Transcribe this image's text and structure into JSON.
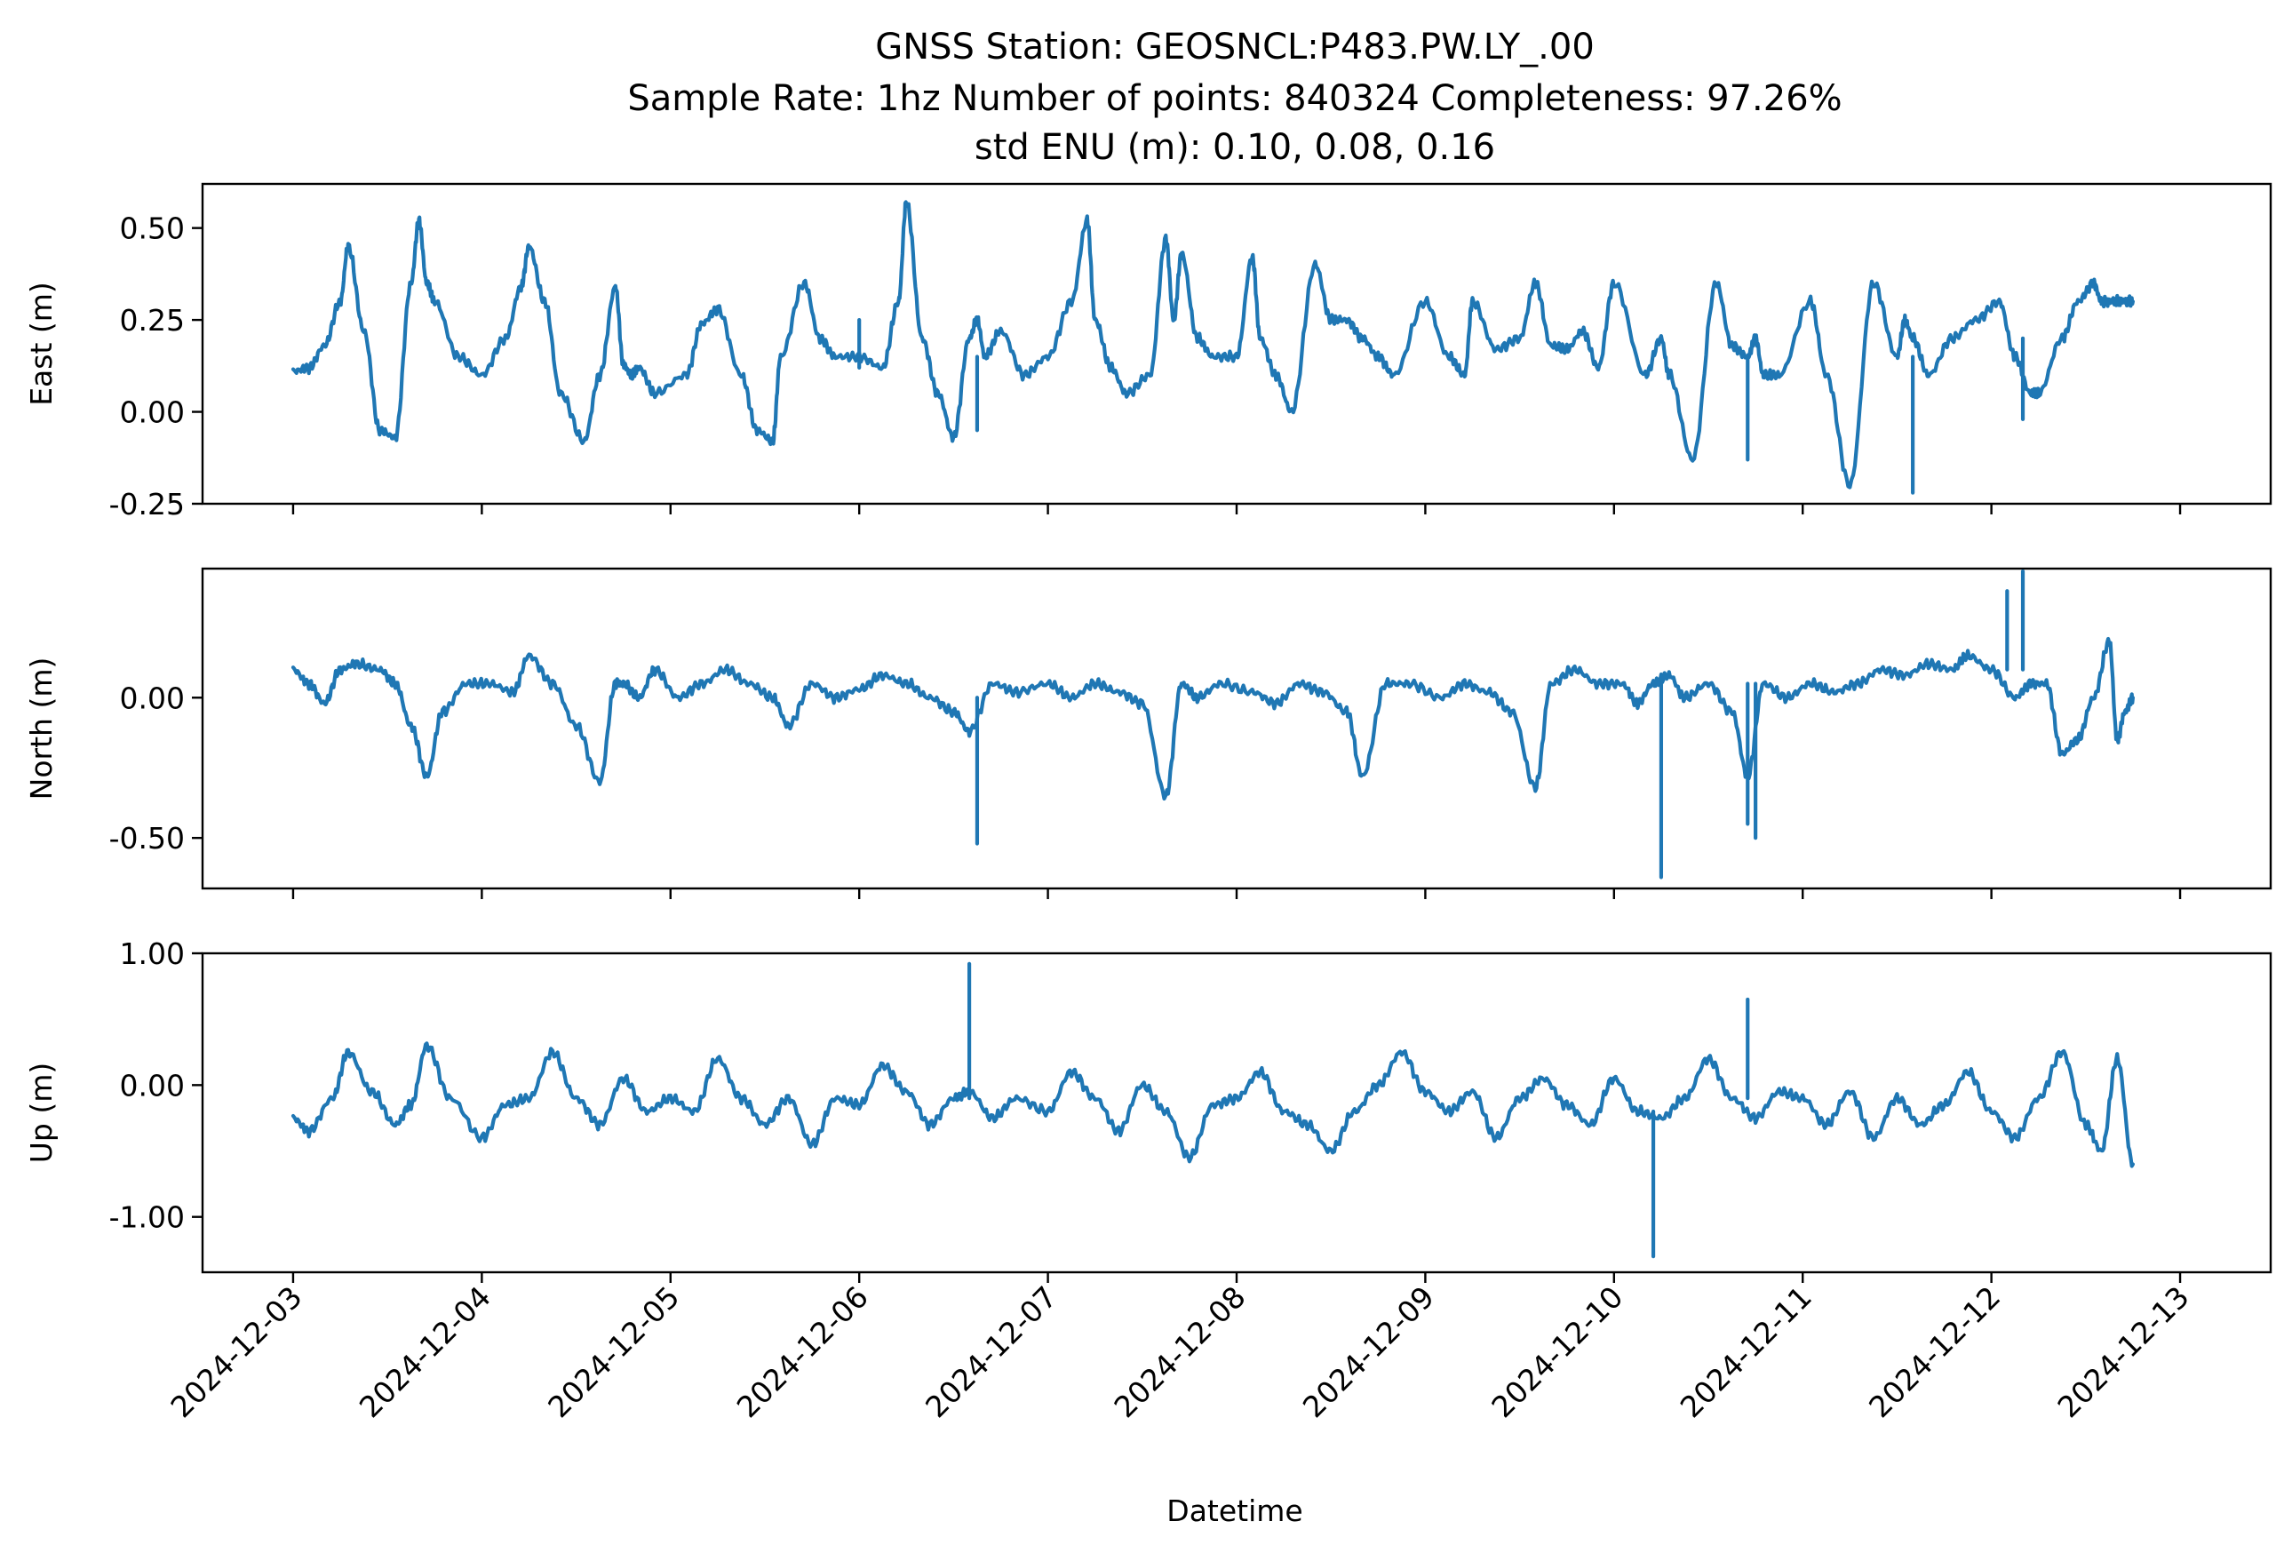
{
  "title": {
    "line1": "GNSS Station: GEOSNCL:P483.PW.LY_.00",
    "line2": "Sample Rate: 1hz   Number of points: 840324    Completeness:  97.26%",
    "line3": "std ENU (m):  0.10, 0.08, 0.16"
  },
  "chart_data": [
    {
      "type": "line",
      "ylabel": "East (m)",
      "xlabel": "",
      "ylim": [
        -0.25,
        0.62
      ],
      "yticks": [
        -0.25,
        0.0,
        0.25,
        0.5
      ],
      "ytick_labels": [
        "-0.25",
        "0.00",
        "0.25",
        "0.50"
      ],
      "series_color": "#1f77b4",
      "series": [
        {
          "x": [
            "2024-12-03 00:00",
            "2024-12-03 02:00",
            "2024-12-03 04:00",
            "2024-12-03 06:00",
            "2024-12-03 07:00",
            "2024-12-03 09:00",
            "2024-12-03 11:00",
            "2024-12-03 13:00",
            "2024-12-03 15:00",
            "2024-12-03 16:00",
            "2024-12-03 17:00",
            "2024-12-03 18:00",
            "2024-12-03 21:00",
            "2024-12-04 00:00",
            "2024-12-04 03:00",
            "2024-12-04 05:00",
            "2024-12-04 06:00",
            "2024-12-04 08:00",
            "2024-12-04 10:00",
            "2024-12-04 13:00",
            "2024-12-04 15:00",
            "2024-12-04 17:00",
            "2024-12-04 18:00",
            "2024-12-04 19:00",
            "2024-12-04 20:00",
            "2024-12-04 22:00",
            "2024-12-05 02:00",
            "2024-12-05 04:00",
            "2024-12-05 06:00",
            "2024-12-05 09:00",
            "2024-12-05 11:00",
            "2024-12-05 13:00",
            "2024-12-05 14:00",
            "2024-12-05 17:00",
            "2024-12-05 19:00",
            "2024-12-05 21:00",
            "2024-12-06 00:00",
            "2024-12-06 03:00",
            "2024-12-06 05:00",
            "2024-12-06 06:00",
            "2024-12-06 08:00",
            "2024-12-06 10:00",
            "2024-12-06 12:00",
            "2024-12-06 14:00",
            "2024-12-06 15:00",
            "2024-12-06 16:00",
            "2024-12-06 18:00",
            "2024-12-06 21:00",
            "2024-12-07 00:00",
            "2024-12-07 03:00",
            "2024-12-07 05:00",
            "2024-12-07 06:00",
            "2024-12-07 08:00",
            "2024-12-07 10:00",
            "2024-12-07 13:00",
            "2024-12-07 15:00",
            "2024-12-07 16:00",
            "2024-12-07 17:00",
            "2024-12-07 19:00",
            "2024-12-07 21:00",
            "2024-12-08 00:00",
            "2024-12-08 02:00",
            "2024-12-08 03:00",
            "2024-12-08 05:00",
            "2024-12-08 07:00",
            "2024-12-08 10:00",
            "2024-12-08 12:00",
            "2024-12-08 14:00",
            "2024-12-08 16:00",
            "2024-12-08 18:00",
            "2024-12-08 20:00",
            "2024-12-09 00:00",
            "2024-12-09 03:00",
            "2024-12-09 05:00",
            "2024-12-09 06:00",
            "2024-12-09 09:00",
            "2024-12-09 12:00",
            "2024-12-09 14:00",
            "2024-12-09 16:00",
            "2024-12-09 18:00",
            "2024-12-09 20:00",
            "2024-12-09 22:00",
            "2024-12-10 00:00",
            "2024-12-10 04:00",
            "2024-12-10 06:00",
            "2024-12-10 07:00",
            "2024-12-10 10:00",
            "2024-12-10 13:00",
            "2024-12-10 15:00",
            "2024-12-10 17:00",
            "2024-12-10 18:00",
            "2024-12-10 19:00",
            "2024-12-10 21:00",
            "2024-12-11 01:00",
            "2024-12-11 03:00",
            "2024-12-11 06:00",
            "2024-12-11 09:00",
            "2024-12-11 12:00",
            "2024-12-11 13:00",
            "2024-12-11 14:00",
            "2024-12-11 16:00",
            "2024-12-11 19:00",
            "2024-12-11 22:00",
            "2024-12-12 01:00",
            "2024-12-12 03:00",
            "2024-12-12 05:00",
            "2024-12-12 06:00",
            "2024-12-12 09:00",
            "2024-12-12 11:00",
            "2024-12-12 13:00",
            "2024-12-12 14:00",
            "2024-12-12 15:00",
            "2024-12-12 16:00",
            "2024-12-12 17:00",
            "2024-12-12 18:00"
          ],
          "y": [
            0.11,
            0.12,
            0.18,
            0.3,
            0.45,
            0.22,
            -0.05,
            -0.07,
            0.35,
            0.52,
            0.35,
            0.3,
            0.15,
            0.1,
            0.2,
            0.34,
            0.45,
            0.3,
            0.05,
            -0.08,
            0.1,
            0.34,
            0.13,
            0.1,
            0.12,
            0.05,
            0.1,
            0.24,
            0.28,
            0.1,
            -0.05,
            -0.08,
            0.15,
            0.35,
            0.2,
            0.15,
            0.15,
            0.12,
            0.3,
            0.57,
            0.2,
            0.05,
            -0.07,
            0.2,
            0.25,
            0.15,
            0.22,
            0.1,
            0.15,
            0.3,
            0.52,
            0.25,
            0.12,
            0.05,
            0.1,
            0.47,
            0.25,
            0.43,
            0.2,
            0.15,
            0.15,
            0.42,
            0.2,
            0.1,
            0.0,
            0.4,
            0.25,
            0.25,
            0.2,
            0.15,
            0.1,
            0.3,
            0.15,
            0.1,
            0.3,
            0.17,
            0.2,
            0.35,
            0.18,
            0.17,
            0.22,
            0.12,
            0.35,
            0.1,
            0.2,
            0.1,
            -0.13,
            0.35,
            0.18,
            0.15,
            0.2,
            0.1,
            0.1,
            0.3,
            0.1,
            -0.2,
            0.35,
            0.15,
            0.25,
            0.2,
            0.1,
            0.2,
            0.25,
            0.3,
            0.15,
            0.05,
            0.05,
            0.2,
            0.3,
            0.35,
            0.3,
            0.3,
            0.3,
            0.3,
            0.3
          ],
          "spikes": [
            {
              "x": "2024-12-06 00:00",
              "from": 0.12,
              "to": 0.25
            },
            {
              "x": "2024-12-06 15:00",
              "from": 0.15,
              "to": -0.05
            },
            {
              "x": "2024-12-10 17:00",
              "from": 0.15,
              "to": -0.13
            },
            {
              "x": "2024-12-11 14:00",
              "from": 0.15,
              "to": -0.22
            },
            {
              "x": "2024-12-12 04:00",
              "from": 0.2,
              "to": -0.02
            }
          ]
        }
      ]
    },
    {
      "type": "line",
      "ylabel": "North (m)",
      "xlabel": "",
      "ylim": [
        -0.68,
        0.46
      ],
      "yticks": [
        -0.5,
        0.0
      ],
      "ytick_labels": [
        "-0.50",
        "0.00"
      ],
      "series_color": "#1f77b4",
      "series": [
        {
          "x": [
            "2024-12-03 00:00",
            "2024-12-03 02:00",
            "2024-12-03 04:00",
            "2024-12-03 06:00",
            "2024-12-03 08:00",
            "2024-12-03 11:00",
            "2024-12-03 13:00",
            "2024-12-03 15:00",
            "2024-12-03 17:00",
            "2024-12-03 19:00",
            "2024-12-03 22:00",
            "2024-12-04 01:00",
            "2024-12-04 04:00",
            "2024-12-04 06:00",
            "2024-12-04 09:00",
            "2024-12-04 12:00",
            "2024-12-04 15:00",
            "2024-12-04 17:00",
            "2024-12-04 18:00",
            "2024-12-04 20:00",
            "2024-12-04 22:00",
            "2024-12-05 01:00",
            "2024-12-05 04:00",
            "2024-12-05 07:00",
            "2024-12-05 10:00",
            "2024-12-05 13:00",
            "2024-12-05 15:00",
            "2024-12-05 18:00",
            "2024-12-05 21:00",
            "2024-12-06 00:00",
            "2024-12-06 03:00",
            "2024-12-06 06:00",
            "2024-12-06 09:00",
            "2024-12-06 12:00",
            "2024-12-06 14:00",
            "2024-12-06 17:00",
            "2024-12-06 20:00",
            "2024-12-07 00:00",
            "2024-12-07 03:00",
            "2024-12-07 06:00",
            "2024-12-07 09:00",
            "2024-12-07 12:00",
            "2024-12-07 15:00",
            "2024-12-07 17:00",
            "2024-12-07 19:00",
            "2024-12-07 22:00",
            "2024-12-08 02:00",
            "2024-12-08 05:00",
            "2024-12-08 08:00",
            "2024-12-08 11:00",
            "2024-12-08 14:00",
            "2024-12-08 16:00",
            "2024-12-08 19:00",
            "2024-12-08 22:00",
            "2024-12-09 02:00",
            "2024-12-09 05:00",
            "2024-12-09 08:00",
            "2024-12-09 11:00",
            "2024-12-09 14:00",
            "2024-12-09 16:00",
            "2024-12-09 19:00",
            "2024-12-09 22:00",
            "2024-12-10 01:00",
            "2024-12-10 03:00",
            "2024-12-10 05:00",
            "2024-12-10 07:00",
            "2024-12-10 09:00",
            "2024-12-10 12:00",
            "2024-12-10 15:00",
            "2024-12-10 17:00",
            "2024-12-10 19:00",
            "2024-12-10 22:00",
            "2024-12-11 01:00",
            "2024-12-11 04:00",
            "2024-12-11 07:00",
            "2024-12-11 10:00",
            "2024-12-11 13:00",
            "2024-12-11 16:00",
            "2024-12-11 19:00",
            "2024-12-11 21:00",
            "2024-12-12 00:00",
            "2024-12-12 03:00",
            "2024-12-12 05:00",
            "2024-12-12 07:00",
            "2024-12-12 09:00",
            "2024-12-12 11:00",
            "2024-12-12 13:00",
            "2024-12-12 15:00",
            "2024-12-12 16:00",
            "2024-12-12 17:00",
            "2024-12-12 18:00"
          ],
          "y": [
            0.1,
            0.05,
            -0.02,
            0.1,
            0.12,
            0.1,
            0.05,
            -0.1,
            -0.28,
            -0.05,
            0.05,
            0.05,
            0.02,
            0.15,
            0.05,
            -0.1,
            -0.3,
            0.05,
            0.05,
            0.0,
            0.1,
            0.0,
            0.05,
            0.1,
            0.05,
            0.0,
            -0.1,
            0.05,
            0.0,
            0.03,
            0.08,
            0.05,
            0.0,
            -0.05,
            -0.12,
            0.05,
            0.02,
            0.05,
            0.0,
            0.05,
            0.02,
            -0.02,
            -0.35,
            0.05,
            0.0,
            0.05,
            0.02,
            -0.02,
            0.05,
            0.02,
            -0.05,
            -0.28,
            0.05,
            0.05,
            0.0,
            0.05,
            0.02,
            -0.05,
            -0.32,
            0.05,
            0.1,
            0.05,
            0.05,
            -0.02,
            0.05,
            0.08,
            0.0,
            0.05,
            -0.05,
            -0.28,
            0.05,
            0.0,
            0.05,
            0.02,
            0.05,
            0.1,
            0.08,
            0.12,
            0.1,
            0.15,
            0.1,
            0.0,
            0.05,
            0.05,
            -0.2,
            -0.15,
            0.0,
            0.2,
            -0.15,
            -0.05,
            0.0
          ],
          "spikes": [
            {
              "x": "2024-12-06 15:00",
              "from": 0.0,
              "to": -0.52
            },
            {
              "x": "2024-12-10 06:00",
              "from": 0.05,
              "to": -0.64
            },
            {
              "x": "2024-12-10 18:00",
              "from": 0.05,
              "to": -0.5
            },
            {
              "x": "2024-12-10 17:00",
              "from": 0.05,
              "to": -0.45
            },
            {
              "x": "2024-12-12 04:00",
              "from": 0.1,
              "to": 0.45
            },
            {
              "x": "2024-12-12 02:00",
              "from": 0.1,
              "to": 0.38
            }
          ]
        }
      ]
    },
    {
      "type": "line",
      "ylabel": "Up (m)",
      "xlabel": "Datetime",
      "ylim": [
        -1.42,
        1.0
      ],
      "yticks": [
        -1.0,
        0.0,
        1.0
      ],
      "ytick_labels": [
        "-1.00",
        "0.00",
        "1.00"
      ],
      "xticks": [
        "2024-12-03",
        "2024-12-04",
        "2024-12-05",
        "2024-12-06",
        "2024-12-07",
        "2024-12-08",
        "2024-12-09",
        "2024-12-10",
        "2024-12-11",
        "2024-12-12",
        "2024-12-13"
      ],
      "series_color": "#1f77b4",
      "series": [
        {
          "x": [
            "2024-12-03 00:00",
            "2024-12-03 02:00",
            "2024-12-03 05:00",
            "2024-12-03 07:00",
            "2024-12-03 10:00",
            "2024-12-03 13:00",
            "2024-12-03 15:00",
            "2024-12-03 17:00",
            "2024-12-03 20:00",
            "2024-12-04 00:00",
            "2024-12-04 03:00",
            "2024-12-04 06:00",
            "2024-12-04 09:00",
            "2024-12-04 12:00",
            "2024-12-04 15:00",
            "2024-12-04 18:00",
            "2024-12-04 21:00",
            "2024-12-05 00:00",
            "2024-12-05 03:00",
            "2024-12-05 06:00",
            "2024-12-05 09:00",
            "2024-12-05 12:00",
            "2024-12-05 15:00",
            "2024-12-05 18:00",
            "2024-12-05 21:00",
            "2024-12-06 00:00",
            "2024-12-06 03:00",
            "2024-12-06 06:00",
            "2024-12-06 09:00",
            "2024-12-06 12:00",
            "2024-12-06 14:00",
            "2024-12-06 17:00",
            "2024-12-06 20:00",
            "2024-12-07 00:00",
            "2024-12-07 03:00",
            "2024-12-07 06:00",
            "2024-12-07 09:00",
            "2024-12-07 12:00",
            "2024-12-07 15:00",
            "2024-12-07 18:00",
            "2024-12-07 21:00",
            "2024-12-08 00:00",
            "2024-12-08 03:00",
            "2024-12-08 06:00",
            "2024-12-08 09:00",
            "2024-12-08 12:00",
            "2024-12-08 15:00",
            "2024-12-08 18:00",
            "2024-12-08 21:00",
            "2024-12-09 00:00",
            "2024-12-09 03:00",
            "2024-12-09 06:00",
            "2024-12-09 09:00",
            "2024-12-09 12:00",
            "2024-12-09 15:00",
            "2024-12-09 18:00",
            "2024-12-09 21:00",
            "2024-12-10 00:00",
            "2024-12-10 03:00",
            "2024-12-10 06:00",
            "2024-12-10 09:00",
            "2024-12-10 12:00",
            "2024-12-10 15:00",
            "2024-12-10 18:00",
            "2024-12-10 21:00",
            "2024-12-11 00:00",
            "2024-12-11 03:00",
            "2024-12-11 06:00",
            "2024-12-11 09:00",
            "2024-12-11 12:00",
            "2024-12-11 15:00",
            "2024-12-11 18:00",
            "2024-12-11 21:00",
            "2024-12-12 00:00",
            "2024-12-12 03:00",
            "2024-12-12 06:00",
            "2024-12-12 09:00",
            "2024-12-12 12:00",
            "2024-12-12 14:00",
            "2024-12-12 16:00",
            "2024-12-12 18:00"
          ],
          "y": [
            -0.25,
            -0.35,
            -0.1,
            0.25,
            -0.05,
            -0.3,
            -0.15,
            0.3,
            -0.1,
            -0.4,
            -0.15,
            -0.1,
            0.25,
            -0.1,
            -0.3,
            0.05,
            -0.2,
            -0.1,
            -0.2,
            0.2,
            -0.1,
            -0.3,
            -0.1,
            -0.45,
            -0.1,
            -0.15,
            0.15,
            -0.05,
            -0.3,
            -0.1,
            -0.05,
            -0.25,
            -0.1,
            -0.2,
            0.1,
            -0.1,
            -0.35,
            0.0,
            -0.2,
            -0.55,
            -0.15,
            -0.1,
            0.1,
            -0.2,
            -0.3,
            -0.5,
            -0.2,
            0.0,
            0.25,
            -0.05,
            -0.2,
            -0.05,
            -0.4,
            -0.1,
            0.05,
            -0.15,
            -0.3,
            0.05,
            -0.2,
            -0.25,
            -0.1,
            0.2,
            -0.1,
            -0.25,
            -0.05,
            -0.1,
            -0.3,
            -0.05,
            -0.4,
            -0.1,
            -0.3,
            -0.15,
            0.1,
            -0.2,
            -0.4,
            -0.1,
            0.25,
            -0.3,
            -0.5,
            0.2,
            -0.6
          ],
          "spikes": [
            {
              "x": "2024-12-06 14:00",
              "from": -0.1,
              "to": 0.92
            },
            {
              "x": "2024-12-10 05:00",
              "from": -0.2,
              "to": -1.3
            },
            {
              "x": "2024-12-10 17:00",
              "from": -0.1,
              "to": 0.65
            }
          ]
        }
      ]
    }
  ]
}
